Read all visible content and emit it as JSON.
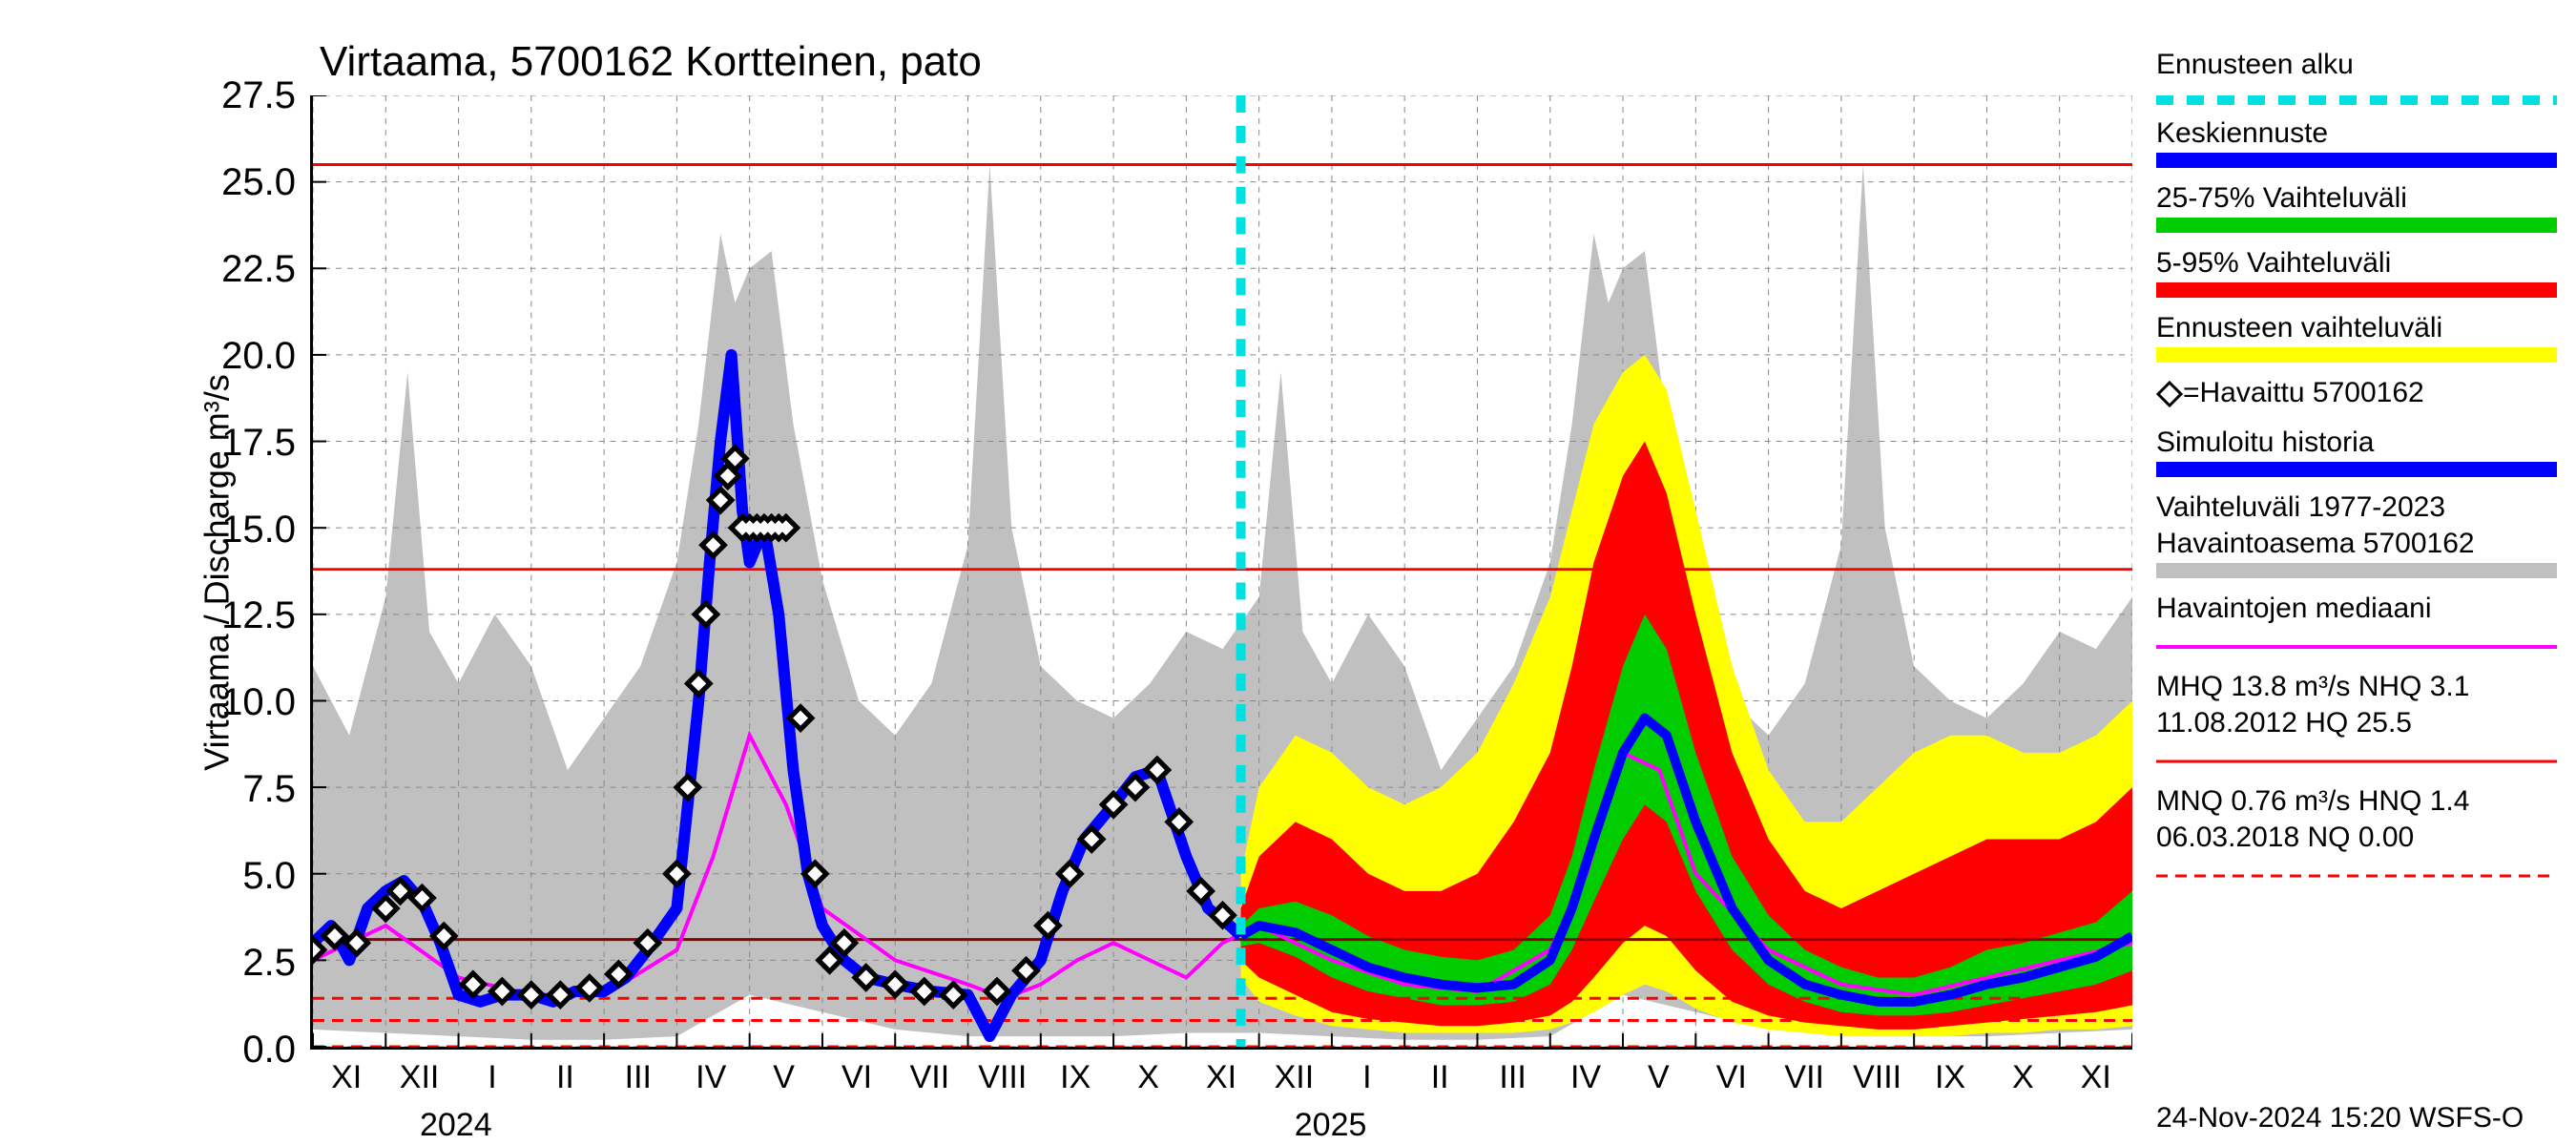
{
  "title": "Virtaama, 5700162 Kortteinen, pato",
  "ylabel": "Virtaama / Discharge   m³/s",
  "footer": "24-Nov-2024 15:20 WSFS-O",
  "yaxis": {
    "min": 0.0,
    "max": 27.5,
    "ticks": [
      0.0,
      2.5,
      5.0,
      7.5,
      10.0,
      12.5,
      15.0,
      17.5,
      20.0,
      22.5,
      25.0,
      27.5
    ],
    "ticklabels": [
      "0.0",
      "2.5",
      "5.0",
      "7.5",
      "10.0",
      "12.5",
      "15.0",
      "17.5",
      "20.0",
      "22.5",
      "25.0",
      "27.5"
    ]
  },
  "xaxis": {
    "months": [
      "XI",
      "XII",
      "I",
      "II",
      "III",
      "IV",
      "V",
      "VI",
      "VII",
      "VIII",
      "IX",
      "X",
      "XI",
      "XII",
      "I",
      "II",
      "III",
      "IV",
      "V",
      "VI",
      "VII",
      "VIII",
      "IX",
      "X",
      "XI"
    ],
    "year1": "2024",
    "year2": "2025",
    "ymin": 0,
    "ymax": 25
  },
  "legend": {
    "forecast_start": "Ennusteen alku",
    "mean_forecast": "Keskiennuste",
    "band_25_75": "25-75% Vaihteluväli",
    "band_5_95": "5-95% Vaihteluväli",
    "forecast_range": "Ennusteen vaihteluväli",
    "observed": "=Havaittu 5700162",
    "sim_history": "Simuloitu historia",
    "hist_range_a": "Vaihteluväli 1977-2023",
    "hist_range_b": " Havaintoasema 5700162",
    "obs_median": "Havaintojen mediaani",
    "mhq_a": "MHQ 13.8 m³/s NHQ  3.1",
    "mhq_b": "11.08.2012 HQ 25.5",
    "mnq_a": "MNQ 0.76 m³/s HNQ  1.4",
    "mnq_b": "06.03.2018 NQ 0.00"
  },
  "colors": {
    "forecast_start": "#00e0e0",
    "mean_forecast": "#0000ff",
    "band_25_75": "#00cc00",
    "band_5_95": "#ff0000",
    "forecast_range": "#ffff00",
    "sim_history": "#0000ff",
    "hist_range": "#c0c0c0",
    "obs_median": "#ff00ff",
    "hq_line": "#ff0000",
    "mhq_line": "#ff0000",
    "nhq_line": "#8b0000",
    "mnq_line": "#ff0000",
    "grid": "#888888",
    "axis": "#000000",
    "diamond_fill": "#ffffff",
    "diamond_stroke": "#000000"
  },
  "lines": {
    "HQ": 25.5,
    "MHQ": 13.8,
    "NHQ": 3.1,
    "HNQ": 1.4,
    "MNQ": 0.76,
    "NQ": 0.0
  },
  "forecast_start_x": 12.75,
  "plot_grid_minor_x": 25,
  "sim": [
    [
      0,
      3.0
    ],
    [
      0.25,
      3.5
    ],
    [
      0.5,
      2.5
    ],
    [
      0.75,
      4.0
    ],
    [
      1,
      4.5
    ],
    [
      1.25,
      4.8
    ],
    [
      1.5,
      4.2
    ],
    [
      1.75,
      3.0
    ],
    [
      2,
      1.5
    ],
    [
      2.3,
      1.3
    ],
    [
      2.6,
      1.5
    ],
    [
      3,
      1.5
    ],
    [
      3.3,
      1.3
    ],
    [
      3.6,
      1.6
    ],
    [
      4,
      1.6
    ],
    [
      4.3,
      2.0
    ],
    [
      4.6,
      2.8
    ],
    [
      5,
      4.0
    ],
    [
      5.15,
      7.0
    ],
    [
      5.3,
      10.0
    ],
    [
      5.45,
      14.0
    ],
    [
      5.6,
      17.5
    ],
    [
      5.75,
      20.0
    ],
    [
      5.9,
      15.5
    ],
    [
      6,
      14.0
    ],
    [
      6.2,
      15.0
    ],
    [
      6.4,
      12.5
    ],
    [
      6.6,
      8.0
    ],
    [
      6.8,
      5.0
    ],
    [
      7,
      3.5
    ],
    [
      7.3,
      2.5
    ],
    [
      7.6,
      2.0
    ],
    [
      8,
      1.8
    ],
    [
      8.5,
      1.6
    ],
    [
      9,
      1.5
    ],
    [
      9.3,
      0.3
    ],
    [
      9.6,
      1.5
    ],
    [
      10,
      2.5
    ],
    [
      10.3,
      4.5
    ],
    [
      10.6,
      6.0
    ],
    [
      11,
      7.0
    ],
    [
      11.3,
      7.8
    ],
    [
      11.6,
      8.0
    ],
    [
      12,
      5.5
    ],
    [
      12.3,
      4.0
    ],
    [
      12.6,
      3.5
    ],
    [
      12.75,
      3.2
    ]
  ],
  "observed": [
    [
      0,
      2.8
    ],
    [
      0.3,
      3.2
    ],
    [
      0.6,
      3.0
    ],
    [
      1,
      4.0
    ],
    [
      1.2,
      4.5
    ],
    [
      1.5,
      4.3
    ],
    [
      1.8,
      3.2
    ],
    [
      2.2,
      1.8
    ],
    [
      2.6,
      1.6
    ],
    [
      3.0,
      1.5
    ],
    [
      3.4,
      1.5
    ],
    [
      3.8,
      1.7
    ],
    [
      4.2,
      2.1
    ],
    [
      4.6,
      3.0
    ],
    [
      5.0,
      5.0
    ],
    [
      5.15,
      7.5
    ],
    [
      5.3,
      10.5
    ],
    [
      5.4,
      12.5
    ],
    [
      5.5,
      14.5
    ],
    [
      5.6,
      15.8
    ],
    [
      5.7,
      16.5
    ],
    [
      5.8,
      17.0
    ],
    [
      5.9,
      15.0
    ],
    [
      6.0,
      15.0
    ],
    [
      6.1,
      15.0
    ],
    [
      6.2,
      15.0
    ],
    [
      6.3,
      15.0
    ],
    [
      6.4,
      15.0
    ],
    [
      6.5,
      15.0
    ],
    [
      6.7,
      9.5
    ],
    [
      6.9,
      5.0
    ],
    [
      7.1,
      2.5
    ],
    [
      7.3,
      3.0
    ],
    [
      7.6,
      2.0
    ],
    [
      8.0,
      1.8
    ],
    [
      8.4,
      1.6
    ],
    [
      8.8,
      1.5
    ],
    [
      9.4,
      1.6
    ],
    [
      9.8,
      2.2
    ],
    [
      10.1,
      3.5
    ],
    [
      10.4,
      5.0
    ],
    [
      10.7,
      6.0
    ],
    [
      11.0,
      7.0
    ],
    [
      11.3,
      7.5
    ],
    [
      11.6,
      8.0
    ],
    [
      11.9,
      6.5
    ],
    [
      12.2,
      4.5
    ],
    [
      12.5,
      3.8
    ]
  ],
  "median": [
    [
      0,
      2.5
    ],
    [
      1,
      3.5
    ],
    [
      2,
      2.0
    ],
    [
      3,
      1.5
    ],
    [
      4,
      1.5
    ],
    [
      5,
      2.8
    ],
    [
      5.5,
      5.5
    ],
    [
      6,
      9.0
    ],
    [
      6.5,
      7.0
    ],
    [
      7,
      4.0
    ],
    [
      8,
      2.5
    ],
    [
      9,
      1.8
    ],
    [
      9.5,
      1.4
    ],
    [
      10,
      1.8
    ],
    [
      10.5,
      2.5
    ],
    [
      11,
      3.0
    ],
    [
      11.5,
      2.5
    ],
    [
      12,
      2.0
    ],
    [
      12.5,
      3.0
    ],
    [
      13,
      3.5
    ],
    [
      14,
      2.5
    ],
    [
      15,
      1.8
    ],
    [
      16,
      1.6
    ],
    [
      17,
      2.8
    ],
    [
      17.5,
      5.0
    ],
    [
      18,
      8.5
    ],
    [
      18.5,
      8.0
    ],
    [
      19,
      5.0
    ],
    [
      20,
      2.8
    ],
    [
      21,
      1.8
    ],
    [
      22,
      1.5
    ],
    [
      23,
      2.0
    ],
    [
      24,
      2.5
    ],
    [
      25,
      3.0
    ]
  ],
  "mean_fc": [
    [
      12.75,
      3.2
    ],
    [
      13,
      3.5
    ],
    [
      13.5,
      3.3
    ],
    [
      14,
      2.8
    ],
    [
      14.5,
      2.3
    ],
    [
      15,
      2.0
    ],
    [
      15.5,
      1.8
    ],
    [
      16,
      1.7
    ],
    [
      16.5,
      1.8
    ],
    [
      17,
      2.5
    ],
    [
      17.3,
      4.0
    ],
    [
      17.6,
      6.0
    ],
    [
      18,
      8.5
    ],
    [
      18.3,
      9.5
    ],
    [
      18.6,
      9.0
    ],
    [
      19,
      6.5
    ],
    [
      19.5,
      4.0
    ],
    [
      20,
      2.5
    ],
    [
      20.5,
      1.8
    ],
    [
      21,
      1.5
    ],
    [
      21.5,
      1.3
    ],
    [
      22,
      1.3
    ],
    [
      22.5,
      1.5
    ],
    [
      23,
      1.8
    ],
    [
      23.5,
      2.0
    ],
    [
      24,
      2.3
    ],
    [
      24.5,
      2.6
    ],
    [
      25,
      3.2
    ]
  ],
  "band25_75_hi": [
    [
      12.75,
      3.5
    ],
    [
      13,
      4.0
    ],
    [
      13.5,
      4.2
    ],
    [
      14,
      3.8
    ],
    [
      14.5,
      3.2
    ],
    [
      15,
      2.8
    ],
    [
      15.5,
      2.6
    ],
    [
      16,
      2.5
    ],
    [
      16.5,
      2.8
    ],
    [
      17,
      3.8
    ],
    [
      17.3,
      5.5
    ],
    [
      17.6,
      8.0
    ],
    [
      18,
      11.0
    ],
    [
      18.3,
      12.5
    ],
    [
      18.6,
      11.5
    ],
    [
      19,
      8.5
    ],
    [
      19.5,
      5.5
    ],
    [
      20,
      3.8
    ],
    [
      20.5,
      2.8
    ],
    [
      21,
      2.3
    ],
    [
      21.5,
      2.0
    ],
    [
      22,
      2.0
    ],
    [
      22.5,
      2.3
    ],
    [
      23,
      2.8
    ],
    [
      23.5,
      3.0
    ],
    [
      24,
      3.3
    ],
    [
      24.5,
      3.6
    ],
    [
      25,
      4.5
    ]
  ],
  "band25_75_lo": [
    [
      12.75,
      2.9
    ],
    [
      13,
      3.0
    ],
    [
      13.5,
      2.6
    ],
    [
      14,
      2.0
    ],
    [
      14.5,
      1.6
    ],
    [
      15,
      1.4
    ],
    [
      15.5,
      1.2
    ],
    [
      16,
      1.2
    ],
    [
      16.5,
      1.3
    ],
    [
      17,
      1.8
    ],
    [
      17.3,
      2.8
    ],
    [
      17.6,
      4.2
    ],
    [
      18,
      6.0
    ],
    [
      18.3,
      7.0
    ],
    [
      18.6,
      6.5
    ],
    [
      19,
      4.5
    ],
    [
      19.5,
      2.8
    ],
    [
      20,
      1.8
    ],
    [
      20.5,
      1.3
    ],
    [
      21,
      1.0
    ],
    [
      21.5,
      0.9
    ],
    [
      22,
      0.9
    ],
    [
      22.5,
      1.0
    ],
    [
      23,
      1.2
    ],
    [
      23.5,
      1.4
    ],
    [
      24,
      1.6
    ],
    [
      24.5,
      1.8
    ],
    [
      25,
      2.2
    ]
  ],
  "band5_95_hi": [
    [
      12.75,
      4.0
    ],
    [
      13,
      5.5
    ],
    [
      13.5,
      6.5
    ],
    [
      14,
      6.0
    ],
    [
      14.5,
      5.0
    ],
    [
      15,
      4.5
    ],
    [
      15.5,
      4.5
    ],
    [
      16,
      5.0
    ],
    [
      16.5,
      6.5
    ],
    [
      17,
      8.5
    ],
    [
      17.3,
      11.0
    ],
    [
      17.6,
      14.0
    ],
    [
      18,
      16.5
    ],
    [
      18.3,
      17.5
    ],
    [
      18.6,
      16.0
    ],
    [
      19,
      12.5
    ],
    [
      19.5,
      8.5
    ],
    [
      20,
      6.0
    ],
    [
      20.5,
      4.5
    ],
    [
      21,
      4.0
    ],
    [
      21.5,
      4.5
    ],
    [
      22,
      5.0
    ],
    [
      22.5,
      5.5
    ],
    [
      23,
      6.0
    ],
    [
      23.5,
      6.0
    ],
    [
      24,
      6.0
    ],
    [
      24.5,
      6.5
    ],
    [
      25,
      7.5
    ]
  ],
  "band5_95_lo": [
    [
      12.75,
      2.5
    ],
    [
      13,
      2.0
    ],
    [
      13.5,
      1.5
    ],
    [
      14,
      1.0
    ],
    [
      14.5,
      0.8
    ],
    [
      15,
      0.7
    ],
    [
      15.5,
      0.6
    ],
    [
      16,
      0.6
    ],
    [
      16.5,
      0.7
    ],
    [
      17,
      0.9
    ],
    [
      17.3,
      1.3
    ],
    [
      17.6,
      2.0
    ],
    [
      18,
      3.0
    ],
    [
      18.3,
      3.5
    ],
    [
      18.6,
      3.2
    ],
    [
      19,
      2.2
    ],
    [
      19.5,
      1.3
    ],
    [
      20,
      0.9
    ],
    [
      20.5,
      0.7
    ],
    [
      21,
      0.6
    ],
    [
      21.5,
      0.5
    ],
    [
      22,
      0.5
    ],
    [
      22.5,
      0.6
    ],
    [
      23,
      0.7
    ],
    [
      23.5,
      0.8
    ],
    [
      24,
      0.9
    ],
    [
      24.5,
      1.0
    ],
    [
      25,
      1.2
    ]
  ],
  "range_hi": [
    [
      12.75,
      5.0
    ],
    [
      13,
      7.5
    ],
    [
      13.5,
      9.0
    ],
    [
      14,
      8.5
    ],
    [
      14.5,
      7.5
    ],
    [
      15,
      7.0
    ],
    [
      15.5,
      7.5
    ],
    [
      16,
      8.5
    ],
    [
      16.5,
      10.5
    ],
    [
      17,
      13.0
    ],
    [
      17.3,
      15.5
    ],
    [
      17.6,
      18.0
    ],
    [
      18,
      19.5
    ],
    [
      18.3,
      20.0
    ],
    [
      18.6,
      19.0
    ],
    [
      19,
      15.5
    ],
    [
      19.5,
      11.0
    ],
    [
      20,
      8.0
    ],
    [
      20.5,
      6.5
    ],
    [
      21,
      6.5
    ],
    [
      21.5,
      7.5
    ],
    [
      22,
      8.5
    ],
    [
      22.5,
      9.0
    ],
    [
      23,
      9.0
    ],
    [
      23.5,
      8.5
    ],
    [
      24,
      8.5
    ],
    [
      24.5,
      9.0
    ],
    [
      25,
      10.0
    ]
  ],
  "range_lo": [
    [
      12.75,
      2.0
    ],
    [
      13,
      1.3
    ],
    [
      13.5,
      0.9
    ],
    [
      14,
      0.6
    ],
    [
      14.5,
      0.5
    ],
    [
      15,
      0.4
    ],
    [
      15.5,
      0.4
    ],
    [
      16,
      0.4
    ],
    [
      16.5,
      0.4
    ],
    [
      17,
      0.5
    ],
    [
      17.3,
      0.7
    ],
    [
      17.6,
      1.0
    ],
    [
      18,
      1.5
    ],
    [
      18.3,
      1.8
    ],
    [
      18.6,
      1.6
    ],
    [
      19,
      1.1
    ],
    [
      19.5,
      0.7
    ],
    [
      20,
      0.5
    ],
    [
      20.5,
      0.4
    ],
    [
      21,
      0.3
    ],
    [
      21.5,
      0.3
    ],
    [
      22,
      0.3
    ],
    [
      22.5,
      0.3
    ],
    [
      23,
      0.4
    ],
    [
      23.5,
      0.4
    ],
    [
      24,
      0.5
    ],
    [
      24.5,
      0.5
    ],
    [
      25,
      0.6
    ]
  ],
  "hist_hi": [
    [
      0,
      11.0
    ],
    [
      0.5,
      9.0
    ],
    [
      1,
      13.0
    ],
    [
      1.3,
      19.5
    ],
    [
      1.6,
      12.0
    ],
    [
      2,
      10.5
    ],
    [
      2.5,
      12.5
    ],
    [
      3,
      11.0
    ],
    [
      3.5,
      8.0
    ],
    [
      4,
      9.5
    ],
    [
      4.5,
      11.0
    ],
    [
      5,
      14.0
    ],
    [
      5.3,
      18.0
    ],
    [
      5.6,
      23.5
    ],
    [
      5.8,
      21.5
    ],
    [
      6,
      22.5
    ],
    [
      6.3,
      23.0
    ],
    [
      6.6,
      18.0
    ],
    [
      7,
      13.5
    ],
    [
      7.5,
      10.0
    ],
    [
      8,
      9.0
    ],
    [
      8.5,
      10.5
    ],
    [
      9,
      14.5
    ],
    [
      9.3,
      25.5
    ],
    [
      9.6,
      15.0
    ],
    [
      10,
      11.0
    ],
    [
      10.5,
      10.0
    ],
    [
      11,
      9.5
    ],
    [
      11.5,
      10.5
    ],
    [
      12,
      12.0
    ],
    [
      12.5,
      11.5
    ],
    [
      13,
      13.0
    ],
    [
      13.3,
      19.5
    ],
    [
      13.6,
      12.0
    ],
    [
      14,
      10.5
    ],
    [
      14.5,
      12.5
    ],
    [
      15,
      11.0
    ],
    [
      15.5,
      8.0
    ],
    [
      16,
      9.5
    ],
    [
      16.5,
      11.0
    ],
    [
      17,
      14.0
    ],
    [
      17.3,
      18.0
    ],
    [
      17.6,
      23.5
    ],
    [
      17.8,
      21.5
    ],
    [
      18,
      22.5
    ],
    [
      18.3,
      23.0
    ],
    [
      18.6,
      18.0
    ],
    [
      19,
      13.5
    ],
    [
      19.5,
      10.0
    ],
    [
      20,
      9.0
    ],
    [
      20.5,
      10.5
    ],
    [
      21,
      14.5
    ],
    [
      21.3,
      25.5
    ],
    [
      21.6,
      15.0
    ],
    [
      22,
      11.0
    ],
    [
      22.5,
      10.0
    ],
    [
      23,
      9.5
    ],
    [
      23.5,
      10.5
    ],
    [
      24,
      12.0
    ],
    [
      24.5,
      11.5
    ],
    [
      25,
      13.0
    ]
  ],
  "hist_lo": [
    [
      0,
      0.5
    ],
    [
      1,
      0.4
    ],
    [
      2,
      0.3
    ],
    [
      3,
      0.2
    ],
    [
      4,
      0.2
    ],
    [
      5,
      0.3
    ],
    [
      6,
      1.5
    ],
    [
      7,
      1.0
    ],
    [
      8,
      0.5
    ],
    [
      9,
      0.3
    ],
    [
      10,
      0.3
    ],
    [
      11,
      0.3
    ],
    [
      12,
      0.4
    ],
    [
      13,
      0.4
    ],
    [
      14,
      0.3
    ],
    [
      15,
      0.2
    ],
    [
      16,
      0.2
    ],
    [
      17,
      0.3
    ],
    [
      18,
      1.5
    ],
    [
      19,
      1.0
    ],
    [
      20,
      0.5
    ],
    [
      21,
      0.3
    ],
    [
      22,
      0.3
    ],
    [
      23,
      0.3
    ],
    [
      24,
      0.4
    ],
    [
      25,
      0.5
    ]
  ]
}
